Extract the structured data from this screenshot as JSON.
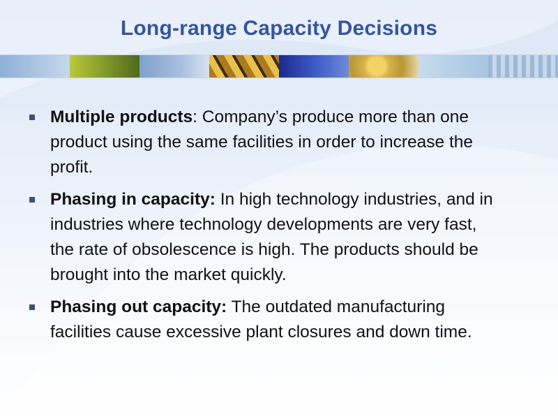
{
  "slide": {
    "title": "Long-range Capacity Decisions",
    "bullets": [
      {
        "term": "Multiple products",
        "text": ": Company’s produce more than one product using the same facilities in order to increase the profit."
      },
      {
        "term": "Phasing in capacity:",
        "text": " In high technology industries, and in industries where technology developments are very fast, the rate of obsolescence is high. The products should be brought into the market quickly."
      },
      {
        "term": "Phasing out capacity:",
        "text": " The outdated manufacturing facilities cause excessive plant closures and down time."
      }
    ]
  },
  "colors": {
    "title": "#3355a8",
    "bullet_marker": "#3d4f7a",
    "body_text": "#111111"
  }
}
